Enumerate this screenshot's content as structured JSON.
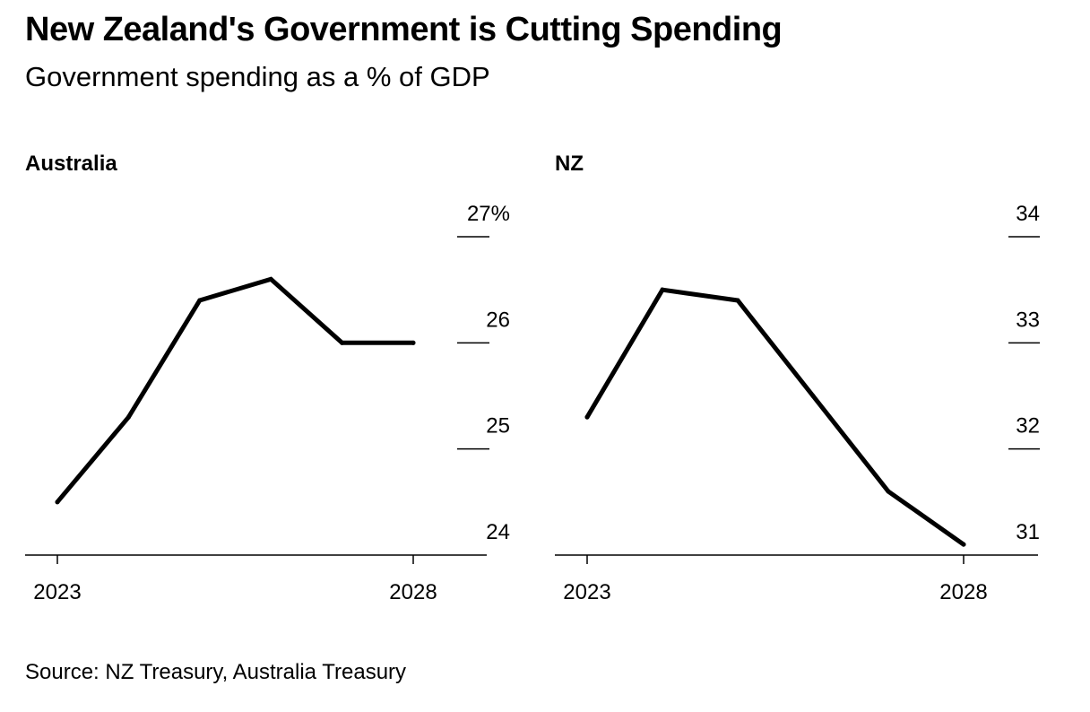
{
  "title": "New Zealand's Government is Cutting Spending",
  "subtitle": "Government spending as a % of GDP",
  "source": "Source: NZ Treasury, Australia Treasury",
  "chart_data": [
    {
      "type": "line",
      "title": "Australia",
      "x": [
        2023,
        2024,
        2025,
        2026,
        2027,
        2028
      ],
      "series": [
        {
          "values": [
            24.5,
            25.3,
            26.4,
            26.6,
            26.0,
            26.0
          ]
        }
      ],
      "ylim": [
        24,
        27
      ],
      "yticks": [
        24,
        25,
        26,
        27
      ],
      "ytick_labels": [
        "24",
        "25",
        "26",
        "27%"
      ],
      "xtick_labels": [
        "2023",
        "2028"
      ],
      "line_color": "#000000"
    },
    {
      "type": "line",
      "title": "NZ",
      "x": [
        2023,
        2024,
        2025,
        2026,
        2027,
        2028
      ],
      "series": [
        {
          "values": [
            32.3,
            33.5,
            33.4,
            32.5,
            31.6,
            31.1
          ]
        }
      ],
      "ylim": [
        31,
        34
      ],
      "yticks": [
        31,
        32,
        33,
        34
      ],
      "ytick_labels": [
        "31",
        "32",
        "33",
        "34"
      ],
      "xtick_labels": [
        "2023",
        "2028"
      ],
      "line_color": "#000000"
    }
  ]
}
